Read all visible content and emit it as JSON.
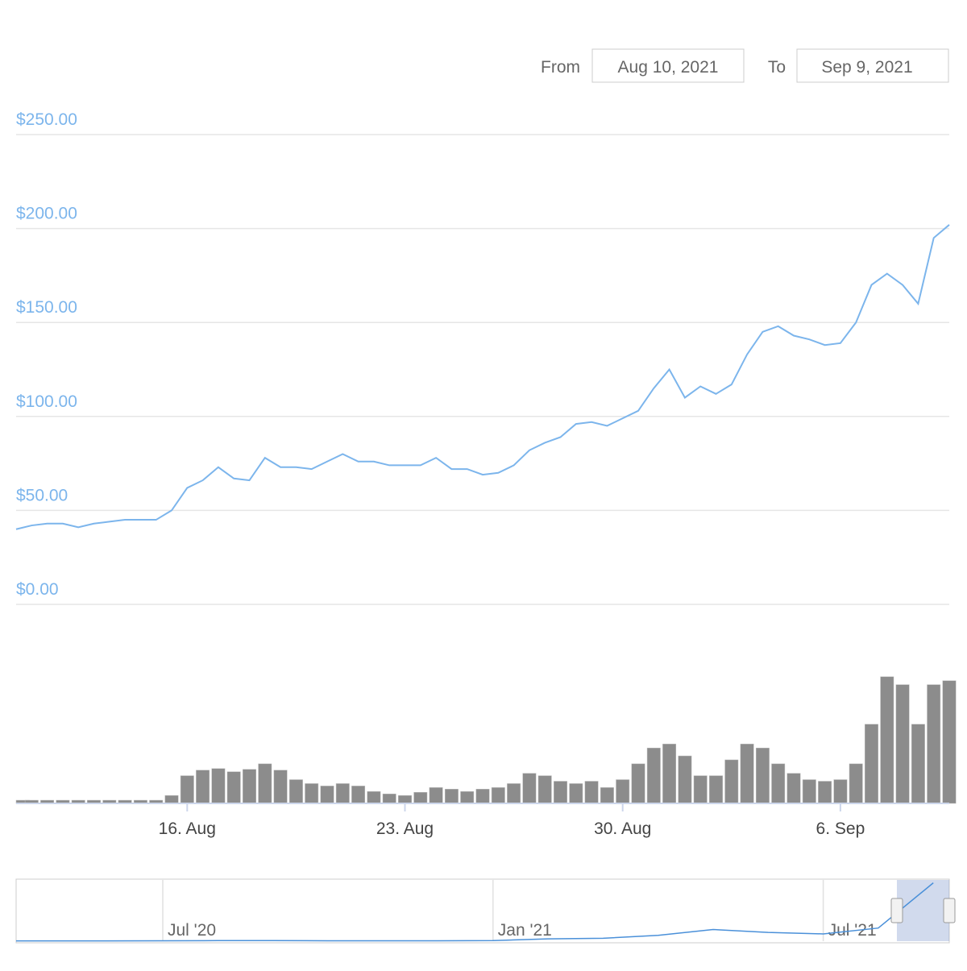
{
  "range": {
    "from_label": "From",
    "from": "Aug 10, 2021",
    "to_label": "To",
    "to": "Sep 9, 2021"
  },
  "chart_data": [
    {
      "type": "line",
      "categories": [
        null,
        null,
        null,
        null,
        null,
        null,
        null,
        null,
        null,
        null,
        null,
        "16. Aug",
        null,
        null,
        null,
        null,
        null,
        null,
        null,
        null,
        null,
        null,
        null,
        null,
        null,
        "23. Aug",
        null,
        null,
        null,
        null,
        null,
        null,
        null,
        null,
        null,
        null,
        null,
        null,
        null,
        "30. Aug",
        null,
        null,
        null,
        null,
        null,
        null,
        null,
        null,
        null,
        null,
        null,
        null,
        null,
        "6. Sep",
        null,
        null,
        null,
        null,
        null,
        null,
        null
      ],
      "ylim": [
        0,
        250
      ],
      "yticks": [
        {
          "value": 0,
          "label": "$0.00"
        },
        {
          "value": 50,
          "label": "$50.00"
        },
        {
          "value": 100,
          "label": "$100.00"
        },
        {
          "value": 150,
          "label": "$150.00"
        },
        {
          "value": 200,
          "label": "$200.00"
        },
        {
          "value": 250,
          "label": "$250.00"
        }
      ],
      "y2lim": [
        0,
        170
      ],
      "grid": true,
      "series": [
        {
          "color": "#7cb5ec",
          "values": [
            40,
            42,
            43,
            43,
            41,
            43,
            44,
            45,
            45,
            45,
            50,
            62,
            66,
            73,
            67,
            66,
            78,
            73,
            73,
            72,
            76,
            80,
            76,
            76,
            74,
            74,
            74,
            78,
            72,
            72,
            69,
            70,
            74,
            82,
            86,
            89,
            96,
            97,
            95,
            99,
            103,
            115,
            125,
            110,
            116,
            112,
            117,
            133,
            145,
            148,
            143,
            141,
            138,
            139,
            150,
            170,
            176,
            170,
            160,
            195,
            202
          ]
        },
        {
          "color": "#8c8c8c",
          "axis": "y2",
          "values": [
            4,
            4,
            4,
            4,
            4,
            4,
            4,
            4,
            4,
            4,
            10,
            35,
            42,
            44,
            40,
            43,
            50,
            42,
            30,
            25,
            22,
            25,
            22,
            15,
            12,
            10,
            14,
            20,
            18,
            15,
            18,
            20,
            25,
            38,
            35,
            28,
            25,
            28,
            20,
            30,
            50,
            70,
            75,
            60,
            35,
            35,
            55,
            75,
            70,
            50,
            38,
            30,
            28,
            30,
            50,
            100,
            160,
            150,
            100,
            150,
            155
          ]
        }
      ]
    },
    {
      "type": "line",
      "categories": [
        null,
        null,
        "Jul '20",
        null,
        null,
        null,
        null,
        null,
        "Jan '21",
        null,
        null,
        null,
        null,
        null,
        "Jul '21",
        null,
        null
      ],
      "ylim": [
        0,
        210
      ],
      "series": [
        {
          "color": "#4a90d9",
          "values": [
            1,
            1,
            1.5,
            2,
            2,
            1.5,
            1.5,
            1.5,
            2,
            8,
            10,
            20,
            40,
            30,
            25,
            45,
            200
          ]
        }
      ]
    }
  ]
}
